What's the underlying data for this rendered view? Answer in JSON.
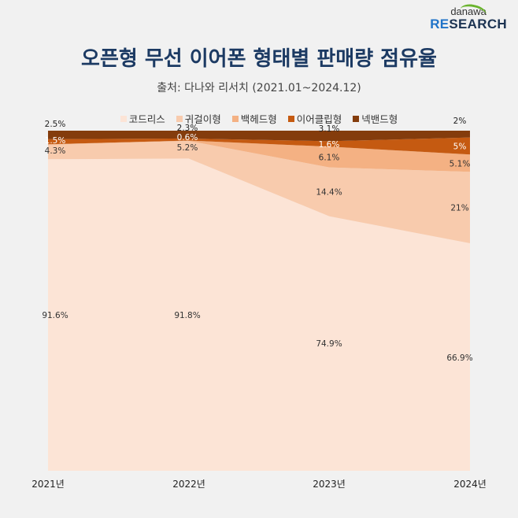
{
  "logo": {
    "top": "danawa",
    "bottom_re": "RE",
    "bottom_rest": "SEARCH"
  },
  "chart_data": {
    "type": "area",
    "stacked": true,
    "normalized": true,
    "title": "오픈형 무선 이어폰 형태별 판매량 점유율",
    "subtitle": "출처: 다나와 리서치 (2021.01~2024.12)",
    "xlabel": "",
    "ylabel": "",
    "ylim": [
      0,
      100
    ],
    "legend_position": "top",
    "categories": [
      "2021년",
      "2022년",
      "2023년",
      "2024년"
    ],
    "series": [
      {
        "name": "코드리스",
        "color": "#fce4d6",
        "values": [
          91.6,
          91.8,
          74.9,
          66.9
        ],
        "labels": [
          "91.6%",
          "91.8%",
          "74.9%",
          "66.9%"
        ],
        "label_color": "#333333"
      },
      {
        "name": "귀걸이형",
        "color": "#f8cbad",
        "values": [
          4.3,
          5.2,
          14.4,
          21
        ],
        "labels": [
          "4.3%",
          "5.2%",
          "14.4%",
          "21%"
        ],
        "label_color": "#333333"
      },
      {
        "name": "백헤드형",
        "color": "#f4b183",
        "values": [
          0.1,
          0.1,
          6.1,
          5.1
        ],
        "labels": [
          "",
          "",
          "6.1%",
          "5.1%"
        ],
        "label_color": "#333333"
      },
      {
        "name": "이어클립형",
        "color": "#c55a11",
        "values": [
          1.5,
          0.6,
          1.6,
          5
        ],
        "labels": [
          "1.5%",
          "0.6%",
          "1.6%",
          "5%"
        ],
        "label_color": "#ffffff"
      },
      {
        "name": "넥밴드형",
        "color": "#843c0c",
        "values": [
          2.5,
          2.3,
          3.1,
          2
        ],
        "labels": [
          "2.5%",
          "2.3%",
          "3.1%",
          "2%"
        ],
        "label_color": "#222222"
      }
    ]
  }
}
